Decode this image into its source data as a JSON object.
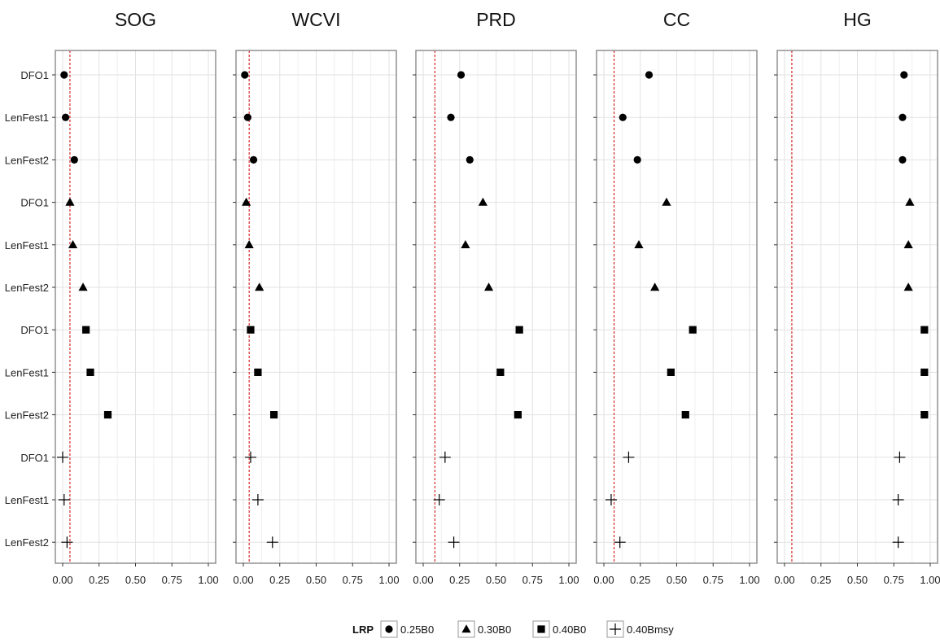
{
  "chart_data": {
    "type": "scatter",
    "title": "",
    "xlabel": "",
    "ylabel": "",
    "xlim": [
      0,
      1
    ],
    "x_ticks": [
      "0.00",
      "0.25",
      "0.50",
      "0.75",
      "1.00"
    ],
    "x_tick_values": [
      0,
      0.25,
      0.5,
      0.75,
      1.0
    ],
    "grid": true,
    "legend_position": "bottom",
    "categories": [
      "DFO1",
      "LenFest1",
      "LenFest2",
      "DFO1",
      "LenFest1",
      "LenFest2",
      "DFO1",
      "LenFest1",
      "LenFest2",
      "DFO1",
      "LenFest1",
      "LenFest2"
    ],
    "legend": {
      "title": "LRP",
      "entries": [
        {
          "label": "0.25B0",
          "shape": "circle"
        },
        {
          "label": "0.30B0",
          "shape": "triangle"
        },
        {
          "label": "0.40B0",
          "shape": "square"
        },
        {
          "label": "0.40Bmsy",
          "shape": "cross"
        }
      ]
    },
    "marker_color": "#000000",
    "reference_line_color": "#cc0000",
    "facets": [
      {
        "name": "SOG",
        "reference_line": 0.05,
        "series": [
          {
            "name": "0.25B0",
            "values": [
              0.01,
              0.02,
              0.08
            ]
          },
          {
            "name": "0.30B0",
            "values": [
              0.05,
              0.07,
              0.14
            ]
          },
          {
            "name": "0.40B0",
            "values": [
              0.16,
              0.19,
              0.31
            ]
          },
          {
            "name": "0.40Bmsy",
            "values": [
              0.0,
              0.01,
              0.03
            ]
          }
        ]
      },
      {
        "name": "WCVI",
        "reference_line": 0.04,
        "series": [
          {
            "name": "0.25B0",
            "values": [
              0.01,
              0.03,
              0.07
            ]
          },
          {
            "name": "0.30B0",
            "values": [
              0.02,
              0.04,
              0.11
            ]
          },
          {
            "name": "0.40B0",
            "values": [
              0.05,
              0.1,
              0.21
            ]
          },
          {
            "name": "0.40Bmsy",
            "values": [
              0.05,
              0.1,
              0.2
            ]
          }
        ]
      },
      {
        "name": "PRD",
        "reference_line": 0.08,
        "series": [
          {
            "name": "0.25B0",
            "values": [
              0.26,
              0.19,
              0.32
            ]
          },
          {
            "name": "0.30B0",
            "values": [
              0.41,
              0.29,
              0.45
            ]
          },
          {
            "name": "0.40B0",
            "values": [
              0.66,
              0.53,
              0.65
            ]
          },
          {
            "name": "0.40Bmsy",
            "values": [
              0.15,
              0.11,
              0.21
            ]
          }
        ]
      },
      {
        "name": "CC",
        "reference_line": 0.07,
        "series": [
          {
            "name": "0.25B0",
            "values": [
              0.31,
              0.13,
              0.23
            ]
          },
          {
            "name": "0.30B0",
            "values": [
              0.43,
              0.24,
              0.35
            ]
          },
          {
            "name": "0.40B0",
            "values": [
              0.61,
              0.46,
              0.56
            ]
          },
          {
            "name": "0.40Bmsy",
            "values": [
              0.17,
              0.05,
              0.11
            ]
          }
        ]
      },
      {
        "name": "HG",
        "reference_line": 0.05,
        "series": [
          {
            "name": "0.25B0",
            "values": [
              0.82,
              0.81,
              0.81
            ]
          },
          {
            "name": "0.30B0",
            "values": [
              0.86,
              0.85,
              0.85
            ]
          },
          {
            "name": "0.40B0",
            "values": [
              0.96,
              0.96,
              0.96
            ]
          },
          {
            "name": "0.40Bmsy",
            "values": [
              0.79,
              0.78,
              0.78
            ]
          }
        ]
      }
    ]
  }
}
